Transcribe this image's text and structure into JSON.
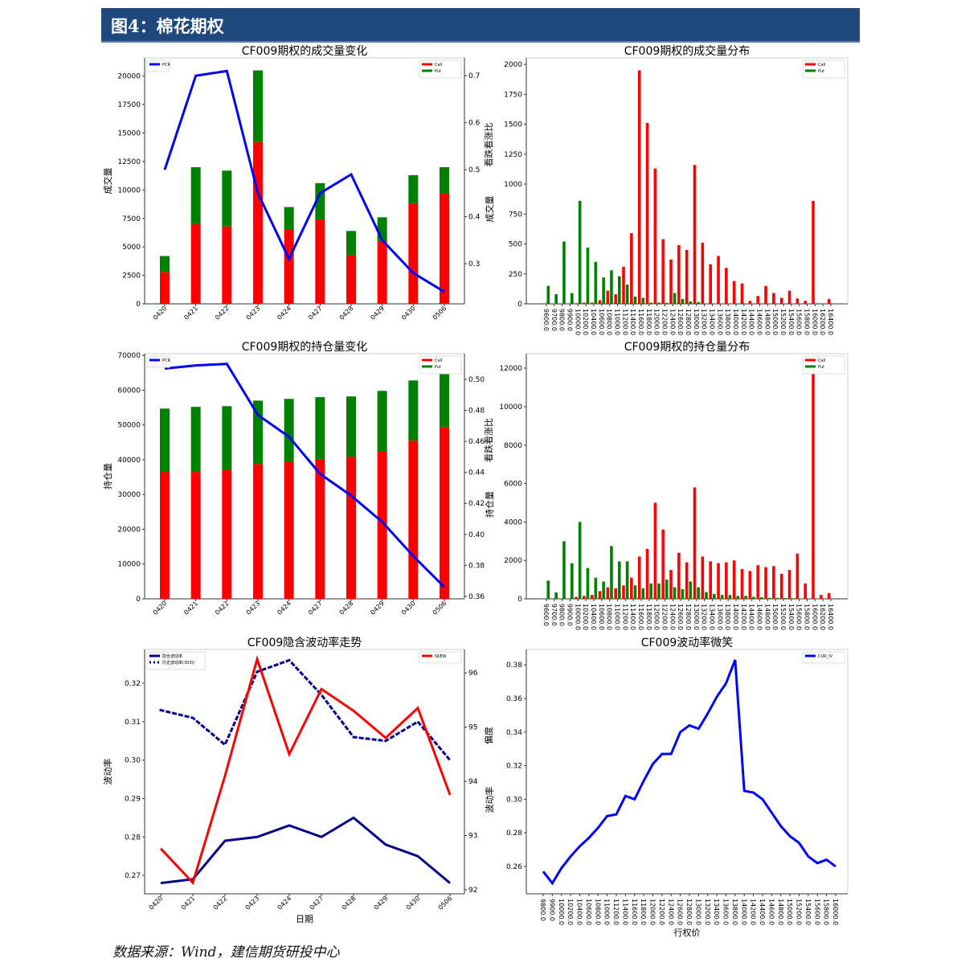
{
  "header": {
    "title": "图4：棉花期权"
  },
  "source": "数据来源：Wind，建信期货研投中心",
  "colors": {
    "call": "#ff0000",
    "put": "#008000",
    "pcr": "#0000ff",
    "iv": "#00008b",
    "skew": "#ff0000",
    "smile": "#0000ff",
    "header": "#1f497d"
  },
  "chart_data": [
    {
      "id": "c1",
      "type": "bar",
      "title": "CF009期权的成交量变化",
      "ylabel": "成交量",
      "ylabel_right": "看跌看涨比",
      "xlabel": "",
      "categories": [
        "0420",
        "0421",
        "0422",
        "0423",
        "0424",
        "0427",
        "0428",
        "0429",
        "0430",
        "0506"
      ],
      "series": [
        {
          "name": "Call",
          "values": [
            2800,
            7000,
            6800,
            14200,
            6500,
            7400,
            4300,
            5500,
            8800,
            9700
          ]
        },
        {
          "name": "Put",
          "values": [
            1400,
            5000,
            4900,
            6300,
            2000,
            3200,
            2100,
            2100,
            2500,
            2300
          ]
        },
        {
          "name": "PCR",
          "axis": "right",
          "values": [
            0.5,
            0.7,
            0.71,
            0.45,
            0.31,
            0.45,
            0.49,
            0.35,
            0.28,
            0.24
          ]
        }
      ],
      "ylim": [
        0,
        21600
      ],
      "ylim_right": [
        0.2145,
        0.738
      ],
      "yticks": [
        "0",
        "2500",
        "5000",
        "7500",
        "10000",
        "12500",
        "15000",
        "17500",
        "20000"
      ],
      "yticks_right": [
        "0.3",
        "0.4",
        "0.5",
        "0.6",
        "0.7"
      ],
      "legend_left": [
        "PCR"
      ],
      "legend_right": [
        "Call",
        "Put"
      ]
    },
    {
      "id": "c2",
      "type": "bar",
      "title": "CF009期权的持仓量变化",
      "ylabel": "持仓量",
      "ylabel_right": "看跌看涨比",
      "xlabel": "",
      "categories": [
        "0420",
        "0421",
        "0422",
        "0423",
        "0424",
        "0427",
        "0428",
        "0429",
        "0430",
        "0506"
      ],
      "series": [
        {
          "name": "Call",
          "values": [
            36500,
            36500,
            37000,
            38800,
            39300,
            40200,
            40900,
            42500,
            45500,
            49400
          ]
        },
        {
          "name": "Put",
          "values": [
            18200,
            18700,
            18400,
            18200,
            18200,
            17800,
            17300,
            17300,
            17300,
            17600
          ]
        },
        {
          "name": "PCR",
          "axis": "right",
          "values": [
            0.507,
            0.509,
            0.51,
            0.477,
            0.463,
            0.439,
            0.425,
            0.408,
            0.386,
            0.366
          ]
        }
      ],
      "ylim": [
        0,
        70500
      ],
      "ylim_right": [
        0.3584,
        0.5166
      ],
      "yticks": [
        "0",
        "10000",
        "20000",
        "30000",
        "40000",
        "50000",
        "60000",
        "70000"
      ],
      "yticks_right": [
        "0.36",
        "0.38",
        "0.40",
        "0.42",
        "0.44",
        "0.46",
        "0.48",
        "0.50"
      ],
      "legend_left": [
        "PCR"
      ],
      "legend_right": [
        "Call",
        "Put"
      ]
    },
    {
      "id": "c3",
      "type": "line",
      "title": "CF009隐含波动率走势",
      "ylabel": "波动率",
      "ylabel_right": "偏度",
      "xlabel": "日期",
      "categories": [
        "0420",
        "0421",
        "0422",
        "0423",
        "0424",
        "0427",
        "0428",
        "0429",
        "0430",
        "0506"
      ],
      "series": [
        {
          "name": "隐含波动率",
          "values": [
            0.268,
            0.269,
            0.279,
            0.28,
            0.283,
            0.28,
            0.285,
            0.278,
            0.275,
            0.268
          ]
        },
        {
          "name": "历史波动率(30日)",
          "values": [
            0.313,
            0.311,
            0.304,
            0.323,
            0.326,
            0.317,
            0.306,
            0.305,
            0.31,
            0.3
          ]
        },
        {
          "name": "SKEW",
          "axis": "right",
          "values": [
            92.76,
            92.13,
            94.1,
            96.25,
            94.5,
            95.7,
            95.3,
            94.8,
            95.35,
            93.75
          ]
        }
      ],
      "ylim": [
        0.2652,
        0.3288
      ],
      "ylim_right": [
        91.926,
        96.43
      ],
      "yticks": [
        "0.27",
        "0.28",
        "0.29",
        "0.30",
        "0.31",
        "0.32"
      ],
      "yticks_right": [
        "92",
        "93",
        "94",
        "95",
        "96"
      ],
      "legend_left": [
        "隐含波动率",
        "历史波动率(30日)"
      ],
      "legend_right": [
        "SKEW"
      ]
    },
    {
      "id": "c4",
      "type": "bar",
      "title": "CF009期权的成交量分布",
      "ylabel": "成交量",
      "xlabel": "",
      "categories": [
        "9600.0",
        "9700.0",
        "9800.0",
        "9900.0",
        "10000.0",
        "10200.0",
        "10400.0",
        "10600.0",
        "10800.0",
        "11000.0",
        "11200.0",
        "11400.0",
        "11600.0",
        "11800.0",
        "12000.0",
        "12200.0",
        "12400.0",
        "12600.0",
        "12800.0",
        "13000.0",
        "13200.0",
        "13400.0",
        "13600.0",
        "13800.0",
        "14000.0",
        "14200.0",
        "14400.0",
        "14600.0",
        "14800.0",
        "15000.0",
        "15200.0",
        "15400.0",
        "15600.0",
        "15800.0",
        "16000.0",
        "16200.0",
        "16400.0"
      ],
      "series": [
        {
          "name": "Call",
          "values": [
            0,
            0,
            0,
            0,
            5,
            10,
            10,
            30,
            110,
            80,
            310,
            590,
            1950,
            1510,
            1130,
            540,
            370,
            490,
            450,
            1160,
            510,
            330,
            400,
            300,
            190,
            170,
            25,
            65,
            150,
            90,
            50,
            110,
            45,
            25,
            860,
            0,
            40
          ]
        },
        {
          "name": "Put",
          "values": [
            150,
            80,
            520,
            90,
            860,
            470,
            350,
            220,
            280,
            230,
            160,
            60,
            50,
            10,
            10,
            8,
            90,
            40,
            20,
            15,
            0,
            0,
            0,
            0,
            0,
            0,
            0,
            0,
            0,
            0,
            0,
            0,
            0,
            0,
            5,
            0,
            0
          ]
        }
      ],
      "ylim": [
        0,
        2054
      ],
      "yticks": [
        "0",
        "250",
        "500",
        "750",
        "1000",
        "1250",
        "1500",
        "1750",
        "2000"
      ],
      "legend_right": [
        "Call",
        "Put"
      ]
    },
    {
      "id": "c5",
      "type": "bar",
      "title": "CF009期权的持仓量分布",
      "ylabel": "持仓量",
      "xlabel": "",
      "categories": [
        "9600.0",
        "9700.0",
        "9800.0",
        "9900.0",
        "10000.0",
        "10200.0",
        "10400.0",
        "10600.0",
        "10800.0",
        "11000.0",
        "11200.0",
        "11400.0",
        "11600.0",
        "11800.0",
        "12000.0",
        "12200.0",
        "12400.0",
        "12600.0",
        "12800.0",
        "13000.0",
        "13200.0",
        "13400.0",
        "13600.0",
        "13800.0",
        "14000.0",
        "14200.0",
        "14400.0",
        "14600.0",
        "14800.0",
        "15000.0",
        "15200.0",
        "15400.0",
        "15600.0",
        "15800.0",
        "16000.0",
        "16200.0",
        "16400.0"
      ],
      "series": [
        {
          "name": "Call",
          "values": [
            0,
            0,
            0,
            0,
            100,
            150,
            200,
            400,
            600,
            550,
            700,
            1100,
            2200,
            2600,
            5000,
            3600,
            1500,
            2400,
            1900,
            5800,
            2200,
            1950,
            1850,
            1900,
            2000,
            1550,
            1450,
            1750,
            1650,
            1700,
            1300,
            1500,
            2350,
            800,
            12200,
            200,
            300
          ]
        },
        {
          "name": "Put",
          "values": [
            950,
            330,
            3000,
            1850,
            4000,
            1600,
            1100,
            900,
            2750,
            1950,
            1950,
            700,
            550,
            800,
            800,
            1000,
            600,
            500,
            900,
            600,
            350,
            250,
            200,
            200,
            150,
            150,
            100,
            80,
            50,
            50,
            40,
            30,
            20,
            10,
            10,
            0,
            0
          ]
        }
      ],
      "ylim": [
        0,
        12760
      ],
      "yticks": [
        "0",
        "2000",
        "4000",
        "6000",
        "8000",
        "10000",
        "12000"
      ],
      "legend_right": [
        "Call",
        "Put"
      ]
    },
    {
      "id": "c6",
      "type": "line",
      "title": "CF009波动率微笑",
      "ylabel": "波动率",
      "xlabel": "行权价",
      "categories": [
        "9800.0",
        "9900.0",
        "10000.0",
        "10200.0",
        "10400.0",
        "10600.0",
        "10800.0",
        "11000.0",
        "11200.0",
        "11400.0",
        "11600.0",
        "11800.0",
        "12000.0",
        "12200.0",
        "12400.0",
        "12600.0",
        "12800.0",
        "13000.0",
        "13200.0",
        "13400.0",
        "13600.0",
        "13800.0",
        "14000.0",
        "14200.0",
        "14400.0",
        "14600.0",
        "14800.0",
        "15000.0",
        "15200.0",
        "15400.0",
        "15600.0",
        "15800.0",
        "16000.0"
      ],
      "series": [
        {
          "name": "CUR_IV",
          "values": [
            0.257,
            0.25,
            0.259,
            0.266,
            0.272,
            0.277,
            0.283,
            0.29,
            0.291,
            0.302,
            0.3,
            0.311,
            0.321,
            0.327,
            0.327,
            0.34,
            0.344,
            0.342,
            0.351,
            0.361,
            0.369,
            0.383,
            0.305,
            0.304,
            0.3,
            0.292,
            0.284,
            0.278,
            0.274,
            0.266,
            0.262,
            0.264,
            0.26
          ]
        }
      ],
      "ylim": [
        0.2437,
        0.3892
      ],
      "yticks": [
        "0.26",
        "0.28",
        "0.30",
        "0.32",
        "0.34",
        "0.36",
        "0.38"
      ],
      "legend_right": [
        "CUR_IV"
      ]
    }
  ]
}
